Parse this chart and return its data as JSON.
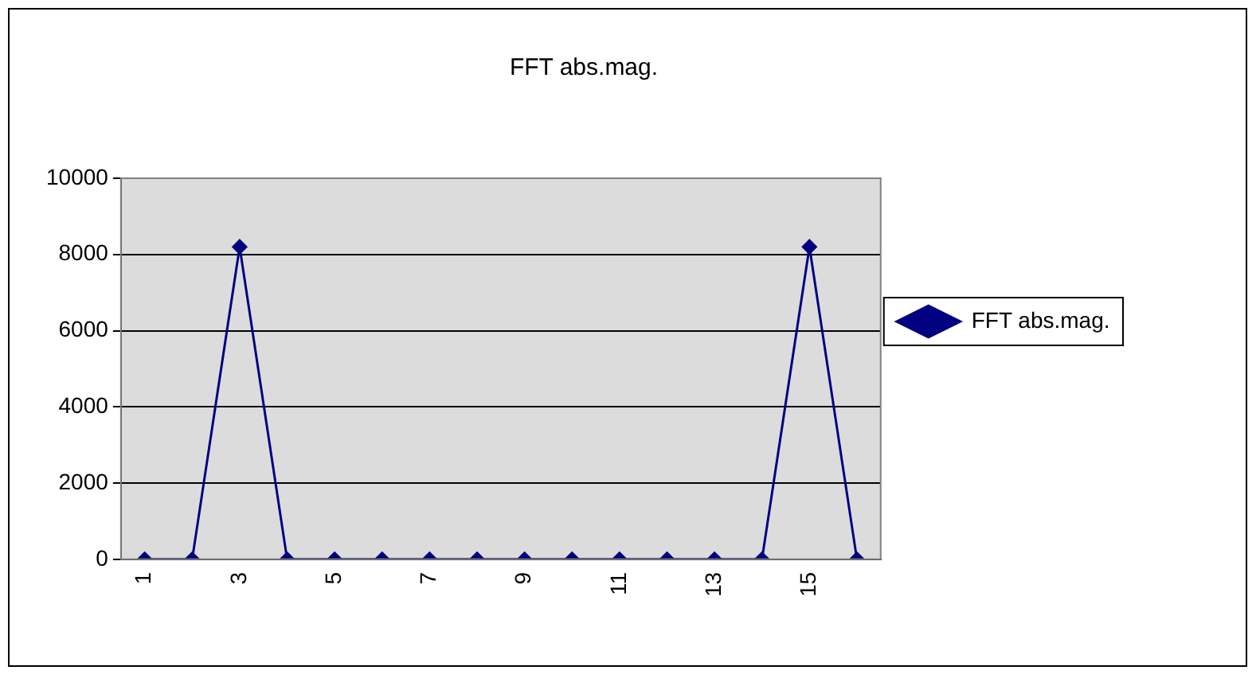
{
  "chart_data": {
    "type": "line",
    "title": "FFT abs.mag.",
    "categories": [
      "1",
      null,
      "3",
      null,
      "5",
      null,
      "7",
      null,
      "9",
      null,
      "11",
      null,
      "13",
      null,
      "15",
      null
    ],
    "series": [
      {
        "name": "FFT abs.mag.",
        "color": "#000080",
        "values": [
          0,
          0,
          8200,
          0,
          0,
          0,
          0,
          0,
          0,
          0,
          0,
          0,
          0,
          0,
          8200,
          0
        ]
      }
    ],
    "ylim": [
      0,
      10000
    ],
    "yticks": [
      0,
      2000,
      4000,
      6000,
      8000,
      10000
    ],
    "grid": "y",
    "legend": "right",
    "marker": "diamond",
    "line_style": "solid"
  }
}
